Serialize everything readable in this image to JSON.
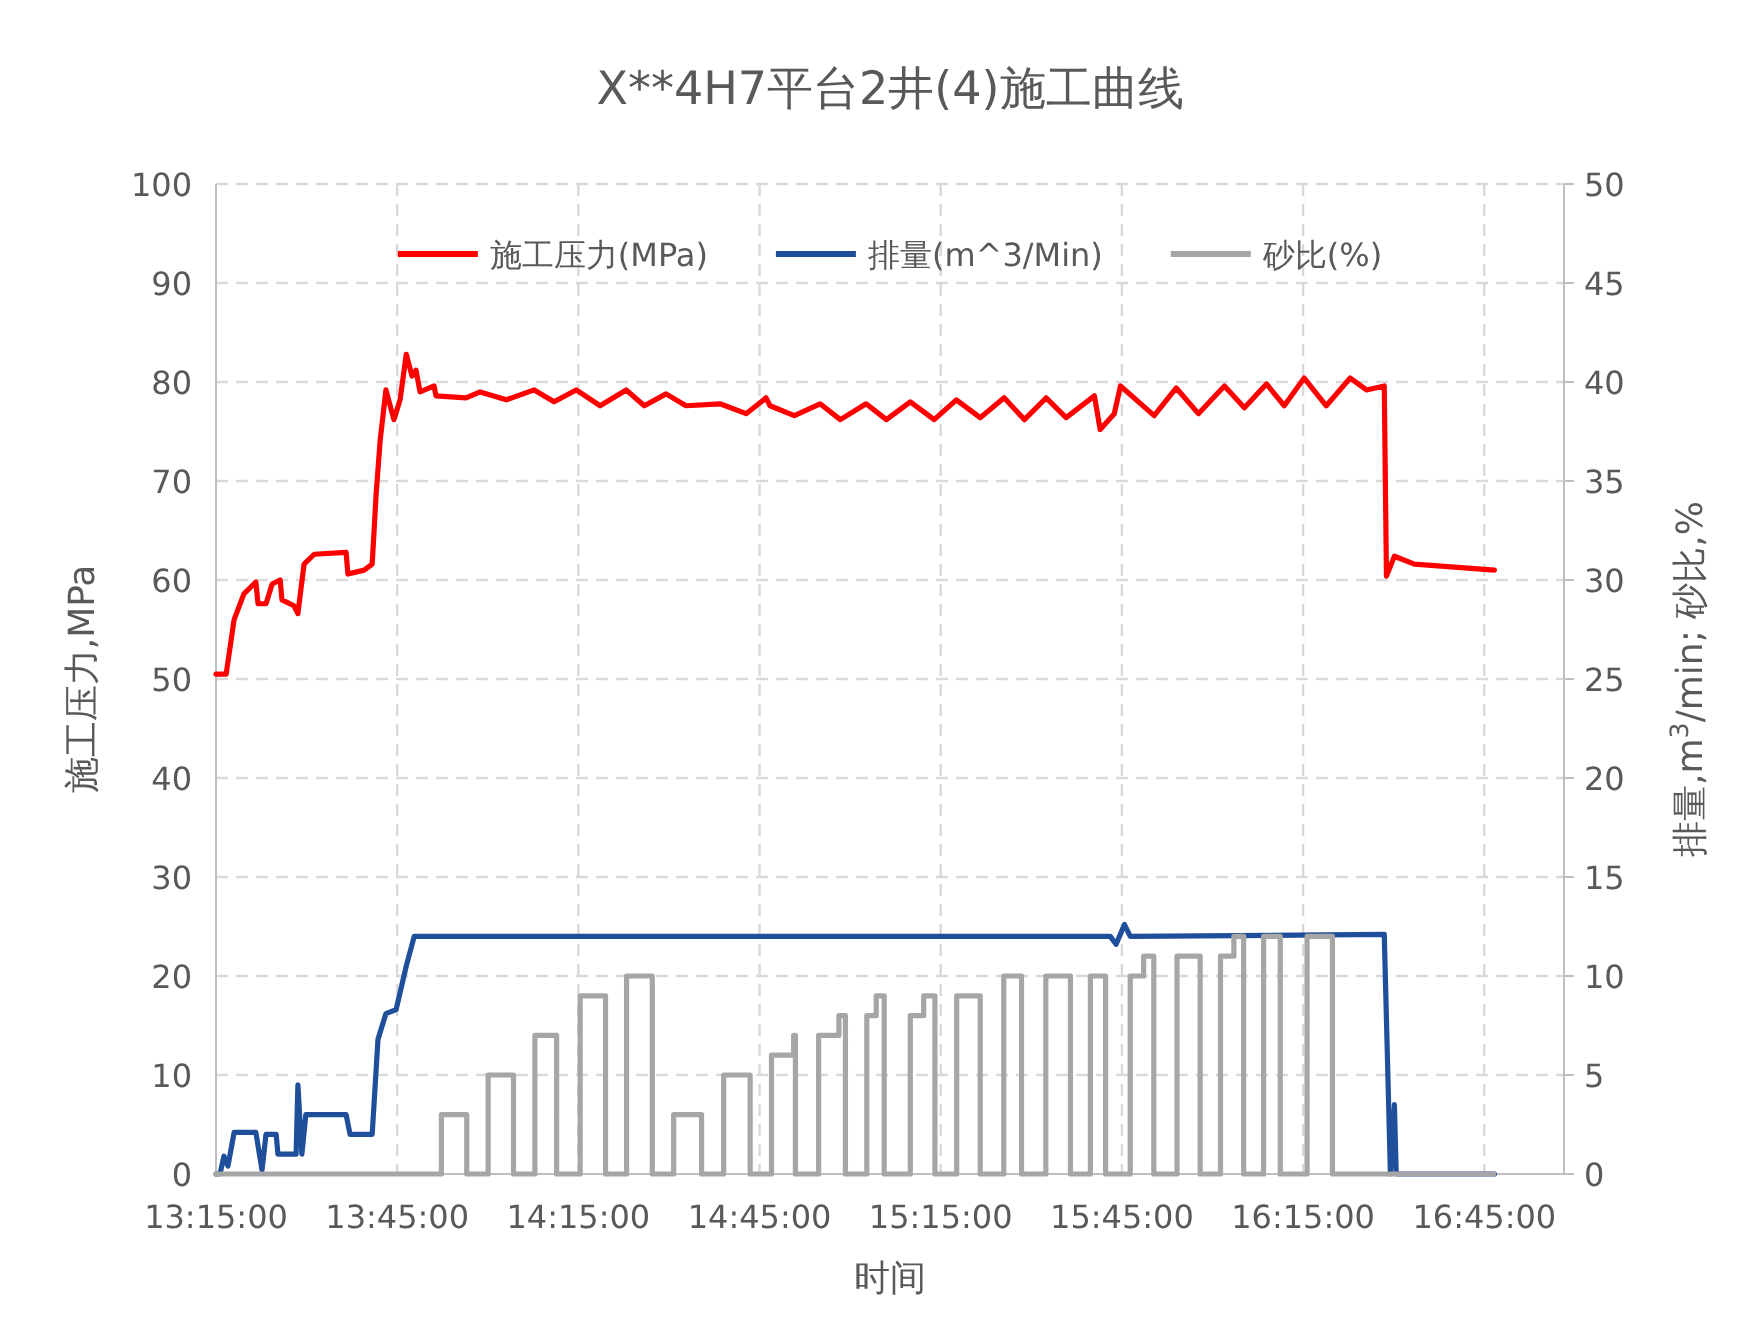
{
  "chart_data": {
    "type": "line",
    "title": "X**4H7平台2井(4)施工曲线",
    "xlabel": "时间",
    "ylabel": "施工压力,MPa",
    "y2label": "排量,m$^{3}$/min; 砂比,%",
    "xlim": [
      13.25,
      16.97
    ],
    "xticks": [
      {
        "value": 13.25,
        "label": "13:15:00"
      },
      {
        "value": 13.75,
        "label": "13:45:00"
      },
      {
        "value": 14.25,
        "label": "14:15:00"
      },
      {
        "value": 14.75,
        "label": "14:45:00"
      },
      {
        "value": 15.25,
        "label": "15:15:00"
      },
      {
        "value": 15.75,
        "label": "15:45:00"
      },
      {
        "value": 16.25,
        "label": "16:15:00"
      },
      {
        "value": 16.75,
        "label": "16:45:00"
      }
    ],
    "ylim": [
      0,
      100
    ],
    "yticks": [
      0,
      10,
      20,
      30,
      40,
      50,
      60,
      70,
      80,
      90,
      100
    ],
    "y2lim": [
      0,
      50
    ],
    "y2ticks": [
      0,
      5,
      10,
      15,
      20,
      25,
      30,
      35,
      40,
      45,
      50
    ],
    "grid": true,
    "legend": "top",
    "series": [
      {
        "name": "施工压力(MPa)",
        "color": "#ff0000",
        "x": [
          13.25,
          13.278,
          13.3,
          13.327,
          13.36,
          13.366,
          13.388,
          13.405,
          13.427,
          13.432,
          13.465,
          13.476,
          13.493,
          13.521,
          13.609,
          13.614,
          13.659,
          13.681,
          13.692,
          13.703,
          13.719,
          13.741,
          13.758,
          13.775,
          13.791,
          13.802,
          13.813,
          13.852,
          13.857,
          13.94,
          13.979,
          14.051,
          14.128,
          14.183,
          14.244,
          14.31,
          14.382,
          14.432,
          14.492,
          14.547,
          14.641,
          14.713,
          14.768,
          14.779,
          14.846,
          14.917,
          14.973,
          15.044,
          15.1,
          15.166,
          15.232,
          15.293,
          15.359,
          15.425,
          15.481,
          15.541,
          15.596,
          15.674,
          15.69,
          15.729,
          15.746,
          15.839,
          15.9,
          15.961,
          16.033,
          16.088,
          16.149,
          16.198,
          16.253,
          16.314,
          16.38,
          16.425,
          16.474,
          16.48,
          16.502,
          16.557,
          16.778
        ],
        "values": [
          50.5,
          50.5,
          56,
          58.6,
          59.8,
          57.6,
          57.6,
          59.6,
          60,
          58,
          57.4,
          56.6,
          61.6,
          62.6,
          62.8,
          60.6,
          61,
          61.6,
          68.7,
          74.1,
          79.2,
          76.2,
          78.2,
          82.8,
          80.6,
          81.2,
          79,
          79.6,
          78.6,
          78.4,
          79,
          78.2,
          79.2,
          78,
          79.2,
          77.6,
          79.2,
          77.6,
          78.8,
          77.6,
          77.8,
          76.8,
          78.4,
          77.6,
          76.6,
          77.8,
          76.2,
          77.8,
          76.2,
          78,
          76.2,
          78.2,
          76.4,
          78.4,
          76.2,
          78.4,
          76.4,
          78.6,
          75.2,
          76.8,
          79.6,
          76.6,
          79.4,
          76.8,
          79.6,
          77.4,
          79.8,
          77.6,
          80.4,
          77.6,
          80.4,
          79.2,
          79.6,
          60.4,
          62.4,
          61.6,
          61
        ]
      },
      {
        "name": "排量(m^3/Min)",
        "color": "#1f4e9a",
        "axis": "y2",
        "x": [
          13.25,
          13.261,
          13.272,
          13.283,
          13.3,
          13.36,
          13.377,
          13.388,
          13.416,
          13.421,
          13.471,
          13.476,
          13.487,
          13.498,
          13.609,
          13.62,
          13.681,
          13.697,
          13.719,
          13.747,
          13.775,
          13.797,
          15.718,
          15.734,
          15.757,
          15.773,
          16.474,
          16.491,
          16.502,
          16.507,
          16.778
        ],
        "values": [
          0,
          0,
          0.9,
          0.4,
          2.1,
          2.1,
          0.2,
          2,
          2,
          1,
          1,
          4.5,
          1,
          3,
          3,
          2,
          2,
          6.8,
          8.1,
          8.3,
          10.5,
          12,
          12,
          11.6,
          12.6,
          12,
          12.1,
          0,
          3.5,
          0,
          0
        ]
      },
      {
        "name": "砂比(%)",
        "color": "#a6a6a6",
        "axis": "y2",
        "x": [
          13.25,
          13.872,
          13.872,
          13.942,
          13.942,
          14.001,
          14.001,
          14.071,
          14.071,
          14.13,
          14.13,
          14.19,
          14.19,
          14.255,
          14.255,
          14.325,
          14.325,
          14.383,
          14.383,
          14.454,
          14.454,
          14.513,
          14.513,
          14.59,
          14.59,
          14.651,
          14.651,
          14.724,
          14.724,
          14.783,
          14.783,
          14.844,
          14.844,
          14.849,
          14.849,
          14.913,
          14.913,
          14.969,
          14.969,
          14.987,
          14.987,
          15.046,
          15.046,
          15.072,
          15.072,
          15.094,
          15.094,
          15.166,
          15.166,
          15.203,
          15.203,
          15.234,
          15.234,
          15.294,
          15.294,
          15.359,
          15.359,
          15.424,
          15.424,
          15.473,
          15.473,
          15.54,
          15.54,
          15.608,
          15.608,
          15.663,
          15.663,
          15.705,
          15.705,
          15.773,
          15.773,
          15.81,
          15.81,
          15.838,
          15.838,
          15.902,
          15.902,
          15.966,
          15.966,
          16.022,
          16.022,
          16.059,
          16.059,
          16.086,
          16.086,
          16.141,
          16.141,
          16.187,
          16.187,
          16.261,
          16.261,
          16.331,
          16.331,
          16.776
        ],
        "values": [
          0,
          0,
          3,
          3,
          0,
          0,
          5,
          5,
          0,
          0,
          7,
          7,
          0,
          0,
          9,
          9,
          0,
          0,
          10,
          10,
          0,
          0,
          3,
          3,
          0,
          0,
          5,
          5,
          0,
          0,
          6,
          6,
          7,
          7,
          0,
          0,
          7,
          7,
          8,
          8,
          0,
          0,
          8,
          8,
          9,
          9,
          0,
          0,
          8,
          8,
          9,
          9,
          0,
          0,
          9,
          9,
          0,
          0,
          10,
          10,
          0,
          0,
          10,
          10,
          0,
          0,
          10,
          10,
          0,
          0,
          10,
          10,
          11,
          11,
          0,
          0,
          11,
          11,
          0,
          0,
          11,
          11,
          12,
          12,
          0,
          0,
          12,
          12,
          0,
          0,
          12,
          12,
          0,
          0
        ]
      }
    ]
  }
}
